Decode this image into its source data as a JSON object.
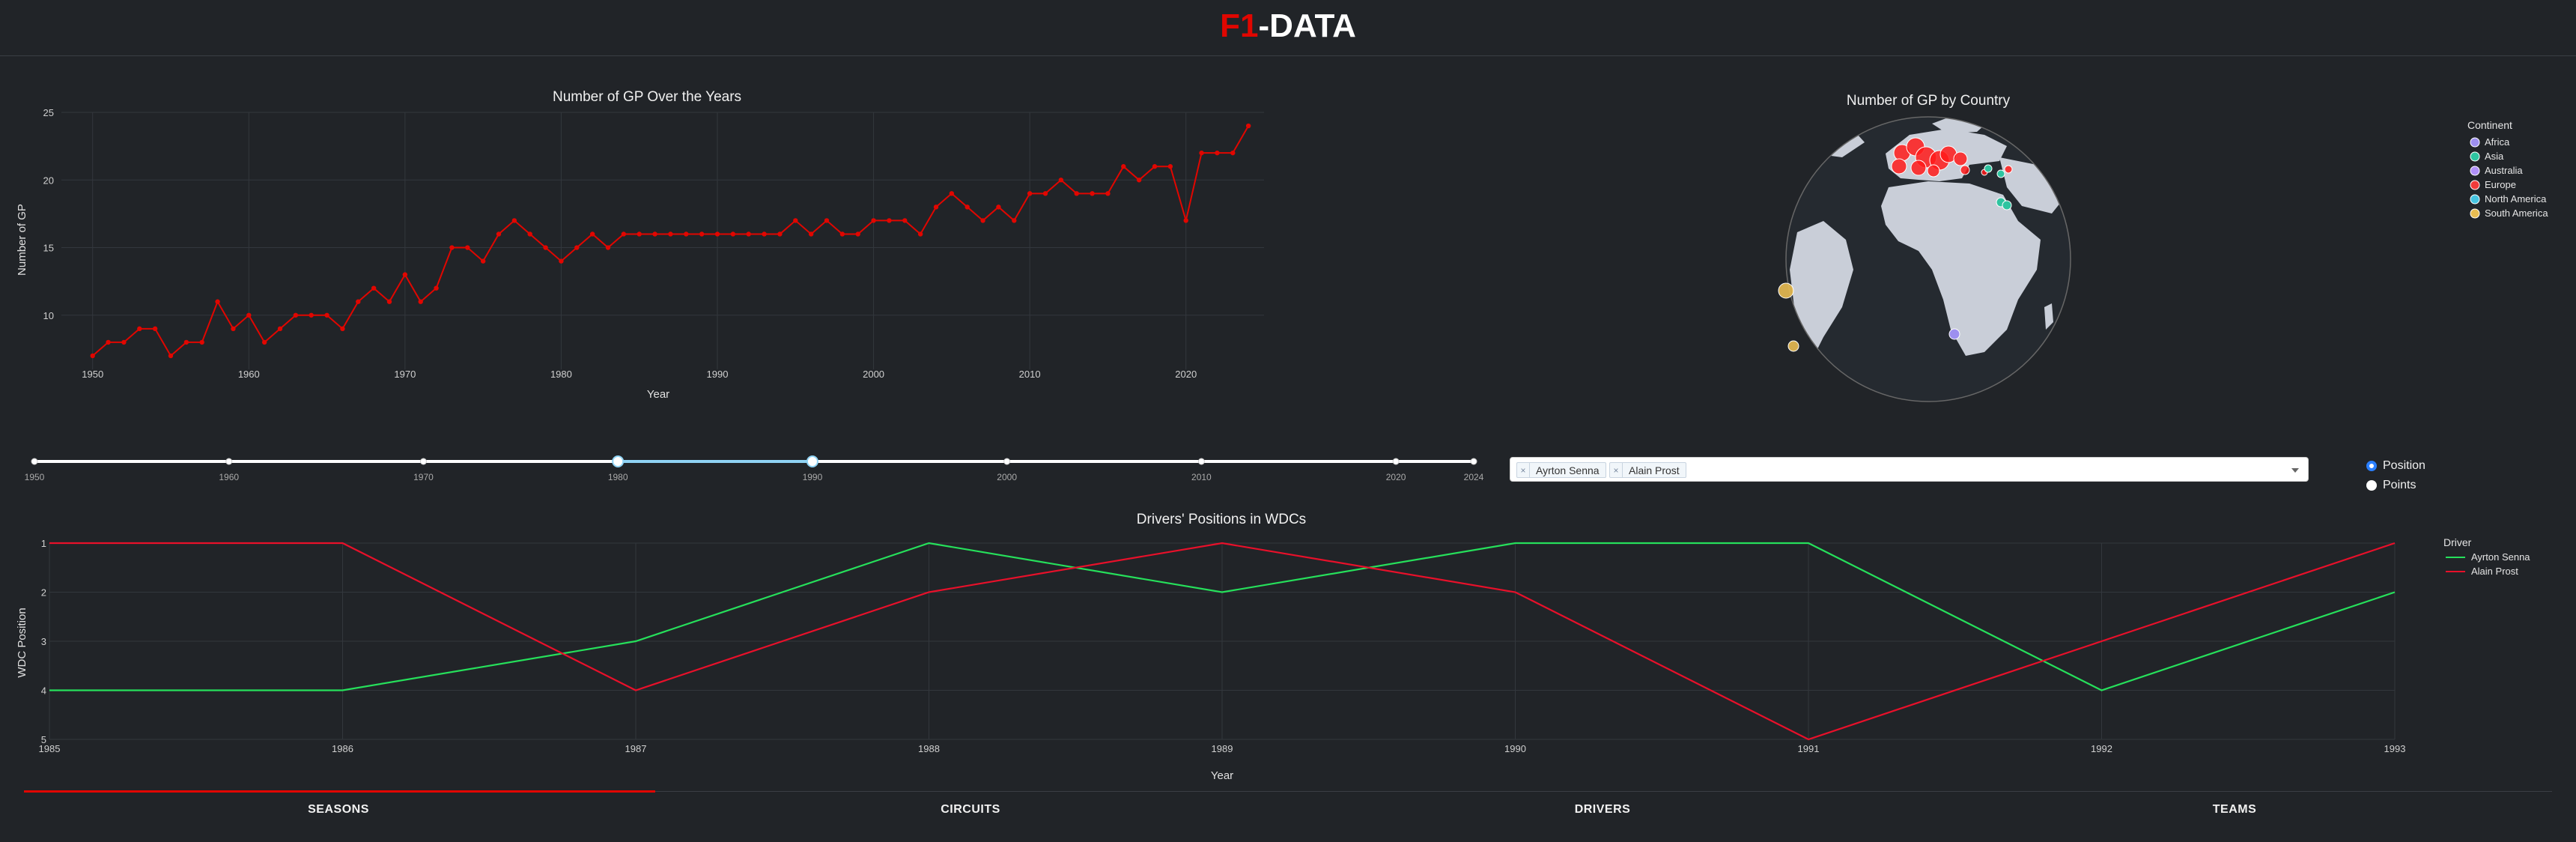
{
  "header": {
    "logo_red": "F1",
    "logo_rest": "-DATA"
  },
  "gp_chart": {
    "chart_data": {
      "type": "line",
      "title": "Number of GP Over the Years",
      "xlabel": "Year",
      "ylabel": "Number of GP",
      "xlim": [
        1948,
        2025
      ],
      "ylim": [
        6,
        25
      ],
      "x_ticks": [
        "1950",
        "1960",
        "1970",
        "1980",
        "1990",
        "2000",
        "2010",
        "2020"
      ],
      "y_ticks": [
        "10",
        "15",
        "20",
        "25"
      ],
      "series": [
        {
          "color": "#e10600",
          "x": [
            1950,
            1951,
            1952,
            1953,
            1954,
            1955,
            1956,
            1957,
            1958,
            1959,
            1960,
            1961,
            1962,
            1963,
            1964,
            1965,
            1966,
            1967,
            1968,
            1969,
            1970,
            1971,
            1972,
            1973,
            1974,
            1975,
            1976,
            1977,
            1978,
            1979,
            1980,
            1981,
            1982,
            1983,
            1984,
            1985,
            1986,
            1987,
            1988,
            1989,
            1990,
            1991,
            1992,
            1993,
            1994,
            1995,
            1996,
            1997,
            1998,
            1999,
            2000,
            2001,
            2002,
            2003,
            2004,
            2005,
            2006,
            2007,
            2008,
            2009,
            2010,
            2011,
            2012,
            2013,
            2014,
            2015,
            2016,
            2017,
            2018,
            2019,
            2020,
            2021,
            2022,
            2023,
            2024
          ],
          "values": [
            7,
            8,
            8,
            9,
            9,
            7,
            8,
            8,
            11,
            9,
            10,
            8,
            9,
            10,
            10,
            10,
            9,
            11,
            12,
            11,
            13,
            11,
            12,
            15,
            15,
            14,
            16,
            17,
            16,
            15,
            14,
            15,
            16,
            15,
            16,
            16,
            16,
            16,
            16,
            16,
            16,
            16,
            16,
            16,
            16,
            17,
            16,
            17,
            16,
            16,
            17,
            17,
            17,
            16,
            18,
            19,
            18,
            17,
            18,
            17,
            19,
            19,
            20,
            19,
            19,
            19,
            21,
            20,
            21,
            21,
            17,
            22,
            22,
            22,
            24
          ]
        }
      ]
    }
  },
  "map_chart": {
    "title": "Number of GP by Country",
    "legend_title": "Continent",
    "legend": [
      {
        "name": "Africa",
        "color": "#9d8fef"
      },
      {
        "name": "Asia",
        "color": "#2ec4a0"
      },
      {
        "name": "Australia",
        "color": "#b090f8"
      },
      {
        "name": "Europe",
        "color": "#ef3a3a"
      },
      {
        "name": "North America",
        "color": "#45c3df"
      },
      {
        "name": "South America",
        "color": "#e9bd52"
      }
    ]
  },
  "slider": {
    "marks": [
      "1950",
      "1960",
      "1970",
      "1980",
      "1990",
      "2000",
      "2010",
      "2020",
      "2024"
    ],
    "min": 1950,
    "max": 2024,
    "range": [
      1980,
      1990
    ]
  },
  "driver_select": {
    "selected": [
      "Ayrton Senna",
      "Alain Prost"
    ],
    "remove_glyph": "×"
  },
  "metric_radio": {
    "options": [
      "Position",
      "Points"
    ],
    "selected": "Position"
  },
  "wdc_chart": {
    "chart_data": {
      "type": "line",
      "title": "Drivers' Positions in WDCs",
      "xlabel": "Year",
      "ylabel": "WDC Position",
      "legend_title": "Driver",
      "x": [
        "1985",
        "1986",
        "1987",
        "1988",
        "1989",
        "1990",
        "1991",
        "1992",
        "1993"
      ],
      "y_ticks": [
        "1",
        "2",
        "3",
        "4",
        "5"
      ],
      "ylim": [
        1,
        5
      ],
      "y_reversed": true,
      "series": [
        {
          "name": "Ayrton Senna",
          "color": "#26e05b",
          "values": [
            4,
            4,
            3,
            1,
            2,
            1,
            1,
            4,
            2
          ]
        },
        {
          "name": "Alain Prost",
          "color": "#e8102a",
          "values": [
            1,
            1,
            4,
            2,
            1,
            2,
            5,
            3,
            1
          ]
        }
      ]
    }
  },
  "tabs": {
    "items": [
      "SEASONS",
      "CIRCUITS",
      "DRIVERS",
      "TEAMS"
    ],
    "active": "SEASONS"
  }
}
